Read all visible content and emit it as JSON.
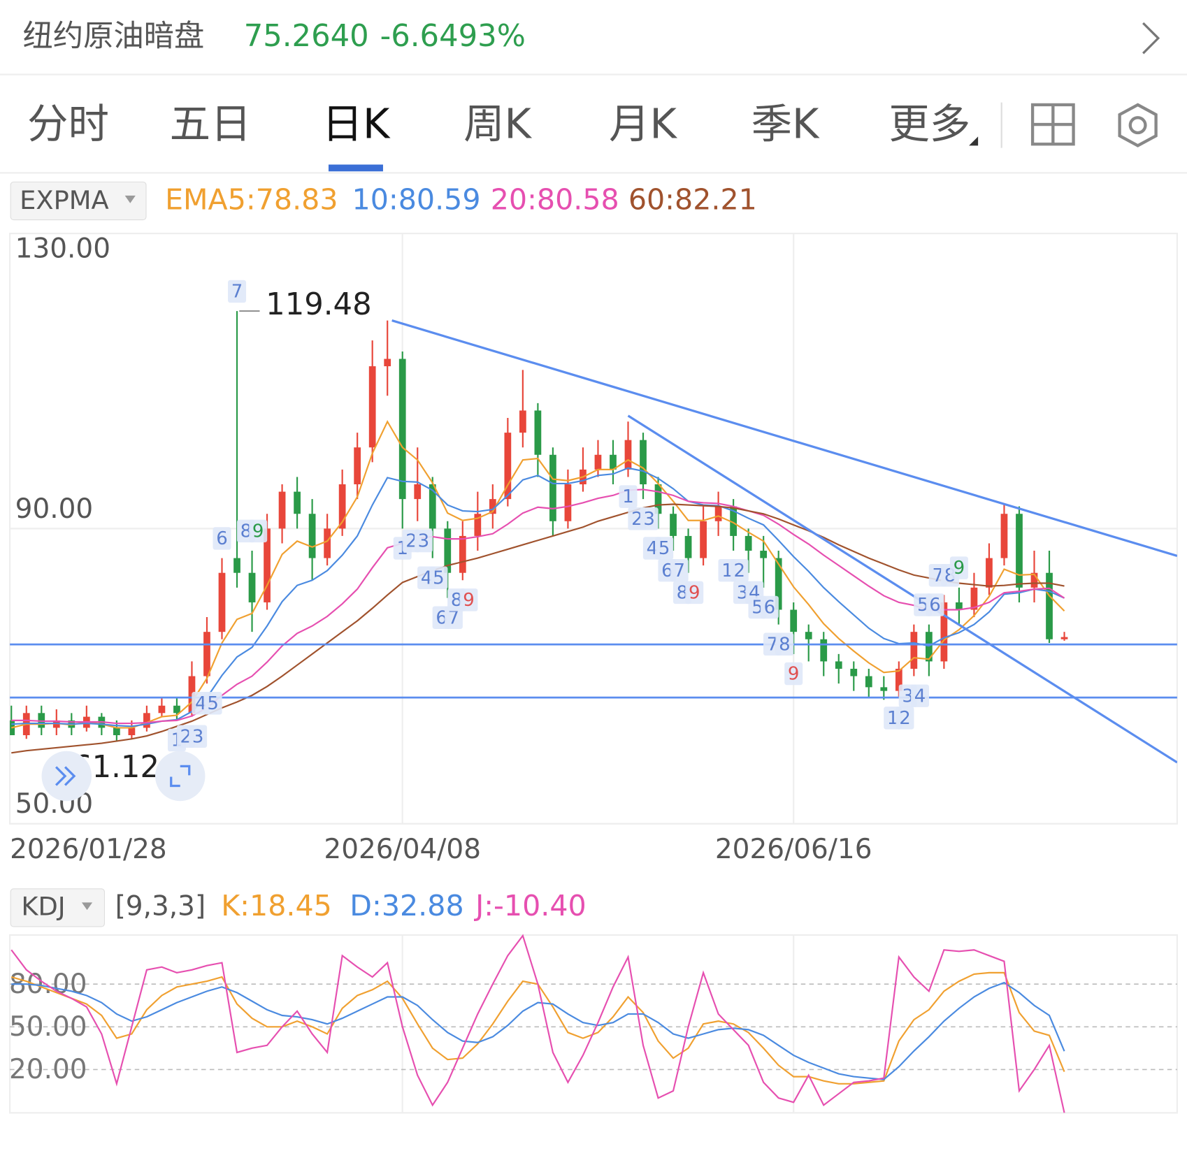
{
  "header": {
    "title": "纽约原油暗盘",
    "price": "75.2640",
    "change": "-6.6493%"
  },
  "tabs": [
    "分时",
    "五日",
    "日K",
    "周K",
    "月K",
    "季K",
    "更多"
  ],
  "active_tab": 2,
  "chart_data": [
    {
      "type": "candlestick",
      "indicator": "EXPMA",
      "categories": [
        "2026/01/28",
        null,
        null,
        null,
        null,
        null,
        null,
        null,
        null,
        null,
        null,
        null,
        null,
        null,
        null,
        null,
        null,
        null,
        null,
        null,
        null,
        null,
        null,
        null,
        null,
        null,
        "2026/04/08",
        null,
        null,
        null,
        null,
        null,
        null,
        null,
        null,
        null,
        null,
        null,
        null,
        null,
        null,
        null,
        null,
        null,
        null,
        null,
        null,
        null,
        null,
        null,
        null,
        null,
        "2026/06/16",
        null,
        null,
        null,
        null,
        null,
        null,
        null,
        null,
        null,
        null,
        null,
        null,
        null,
        null,
        null,
        null,
        null,
        null
      ],
      "xlim": [
        0,
        77.5
      ],
      "ylim": [
        50,
        130
      ],
      "yticks": [
        {
          "value": 50,
          "label": "50.00"
        },
        {
          "value": 90,
          "label": "90.00"
        },
        {
          "value": 130,
          "label": "130.00"
        }
      ],
      "grid": true,
      "up_color": "#e8463a",
      "down_color": "#2a9a48",
      "open": [
        64,
        62,
        65,
        63,
        64,
        63,
        64.5,
        63,
        62,
        63,
        65,
        66,
        65,
        70,
        76,
        86,
        84,
        80,
        90,
        95,
        92,
        86,
        90,
        96,
        101,
        112,
        113,
        94,
        96,
        90,
        84,
        89,
        92,
        94,
        103,
        106,
        100,
        91,
        96,
        98,
        100,
        98,
        102,
        96,
        92,
        89,
        86,
        91,
        93,
        89,
        87,
        86,
        79,
        76,
        75,
        72,
        71,
        70,
        68.5,
        68,
        71,
        76,
        72,
        80,
        79,
        82,
        86,
        92,
        82,
        84,
        75
      ],
      "high": [
        66,
        66,
        66,
        65.5,
        65,
        66,
        65,
        64,
        64,
        66,
        67,
        67,
        72,
        78,
        86,
        119.48,
        87,
        92,
        96,
        97,
        94,
        92,
        98,
        103,
        115.5,
        118.2,
        114,
        101,
        97,
        91,
        91,
        95,
        96,
        105,
        111.5,
        107,
        101,
        98,
        101,
        102,
        102,
        104.5,
        103,
        97,
        93,
        90,
        93,
        95,
        94,
        90,
        89,
        87,
        80,
        77,
        76,
        73,
        72,
        71,
        70,
        72,
        77,
        77,
        81,
        82,
        84,
        88,
        93.3,
        93,
        87,
        87,
        76
      ],
      "low": [
        62,
        61.5,
        62,
        62,
        62,
        62.5,
        62,
        61.12,
        61.5,
        62.5,
        64.5,
        64,
        64.5,
        69,
        75,
        82,
        76,
        79,
        88,
        90,
        83,
        85,
        89,
        94,
        99,
        108,
        90,
        91,
        86,
        80.6,
        83,
        87,
        90,
        93,
        101,
        97,
        89,
        90,
        95,
        97,
        96,
        97,
        94,
        90,
        87,
        84,
        85,
        89,
        87,
        84,
        82,
        77,
        73,
        72,
        70,
        69,
        68,
        67,
        66.8,
        67,
        70,
        70,
        71,
        77,
        78,
        81,
        85,
        80,
        80,
        74.5,
        74.8
      ],
      "close": [
        62,
        65,
        63,
        64,
        63,
        64.5,
        63,
        62,
        63,
        65,
        66,
        65,
        70,
        76,
        84,
        84,
        80,
        90,
        95,
        92,
        86,
        90,
        96,
        101,
        112,
        113,
        94,
        96,
        90,
        84,
        89,
        92,
        94,
        103,
        106,
        100,
        91,
        96,
        98,
        100,
        98,
        102,
        96,
        92,
        89,
        86,
        91,
        93,
        89,
        87,
        86,
        79,
        76,
        75,
        72,
        71,
        70,
        68.5,
        68,
        71,
        76,
        72,
        80,
        79,
        82,
        86,
        92,
        82,
        84,
        75,
        75.3
      ],
      "series": [
        {
          "name": "EMA5:78.83",
          "color": "#f0a030",
          "values": [
            63,
            63.5,
            63.5,
            63.6,
            63.4,
            63.8,
            63.5,
            63,
            63,
            63.7,
            64.5,
            64.7,
            66.5,
            69.7,
            74.5,
            77.7,
            78.5,
            82.3,
            86.5,
            88.3,
            87.5,
            88.3,
            90.9,
            94.3,
            100.2,
            104.5,
            101,
            99.3,
            96.2,
            92.1,
            91.1,
            91.4,
            92.3,
            95.9,
            99.3,
            99.5,
            96.7,
            96.5,
            97,
            98,
            98,
            99.3,
            98.2,
            96.1,
            93.7,
            91.1,
            91.1,
            91.7,
            90.8,
            89.5,
            88.3,
            85.2,
            82.1,
            79.7,
            77.1,
            75.1,
            73.4,
            71.8,
            70.5,
            70.7,
            72.5,
            72.3,
            74.9,
            76.3,
            78.2,
            80.8,
            84.5,
            83.7,
            83.8,
            80.9,
            78.83
          ]
        },
        {
          "name": "10:80.59",
          "color": "#4a8ae0",
          "values": [
            63.5,
            63.6,
            63.6,
            63.6,
            63.5,
            63.6,
            63.5,
            63.3,
            63.2,
            63.5,
            63.9,
            64.1,
            65.2,
            67.1,
            70.1,
            72.6,
            73.9,
            76.8,
            80.1,
            82.3,
            83,
            84.3,
            86.4,
            89,
            93.2,
            96.9,
            96.4,
            96.3,
            95.2,
            93.2,
            92.4,
            92.3,
            92.6,
            94.5,
            96.6,
            97.2,
            96.1,
            96.1,
            96.5,
            97.2,
            97.4,
            98.2,
            97.8,
            96.8,
            95.4,
            93.7,
            93.2,
            93.1,
            92.4,
            91.4,
            90.5,
            88.4,
            86.2,
            84.2,
            82,
            80.1,
            78.3,
            76.5,
            75.1,
            74.4,
            74.5,
            74.1,
            75.2,
            75.9,
            77,
            78.7,
            81.1,
            81.3,
            81.8,
            81.5,
            80.59
          ]
        },
        {
          "name": "20:80.58",
          "color": "#e64fb0",
          "values": [
            64,
            64,
            63.9,
            63.9,
            63.8,
            63.8,
            63.8,
            63.6,
            63.6,
            63.7,
            63.9,
            64,
            64.6,
            65.7,
            67.4,
            68.9,
            70,
            71.9,
            74.1,
            75.8,
            76.8,
            78.1,
            79.8,
            81.8,
            84.7,
            87.4,
            88,
            88.7,
            88.9,
            88.6,
            88.6,
            88.9,
            89.3,
            90.6,
            92.1,
            92.9,
            92.7,
            93,
            93.5,
            94.1,
            94.5,
            95.2,
            95.3,
            95,
            94.5,
            93.7,
            93.5,
            93.4,
            93,
            92.4,
            91.8,
            90.6,
            89.2,
            87.9,
            86.4,
            85,
            83.6,
            82.2,
            80.9,
            80,
            79.6,
            78.9,
            79,
            79,
            79.3,
            80,
            81.3,
            81.5,
            81.8,
            81.9,
            80.58
          ]
        },
        {
          "name": "60:82.21",
          "color": "#a0522d",
          "values": [
            59.6,
            59.9,
            60.1,
            60.3,
            60.5,
            60.7,
            60.9,
            61.2,
            61.5,
            61.9,
            62.5,
            63.2,
            63.9,
            64.8,
            65.7,
            66.5,
            67.4,
            68.6,
            70,
            71.5,
            73,
            74.5,
            76,
            77.5,
            79.2,
            81,
            82.7,
            83.5,
            84.3,
            85,
            85.5,
            86,
            86.6,
            87.2,
            87.8,
            88.4,
            89,
            89.6,
            90.2,
            91,
            91.6,
            92.2,
            92.8,
            93.2,
            93.3,
            93.2,
            93.1,
            93,
            92.8,
            92.4,
            92,
            91.3,
            90.5,
            89.7,
            88.8,
            87.8,
            86.9,
            86,
            85.2,
            84.4,
            83.7,
            83.3,
            82.9,
            82.6,
            82.4,
            82.2,
            82.3,
            82.5,
            82.6,
            82.6,
            82.21
          ]
        }
      ],
      "line_color": "#5b8def",
      "hlines": [
        74.3,
        67.1
      ],
      "trendlines": [
        {
          "x": [
            25.3,
            77.5
          ],
          "y": [
            118.2,
            86.3
          ]
        },
        {
          "x": [
            41,
            77.5
          ],
          "y": [
            105.3,
            58.3
          ]
        }
      ],
      "marker_color": "#5b7fd0",
      "markers": [
        {
          "label": "1",
          "index": 11,
          "side": "below"
        },
        {
          "label": "2",
          "index": 12,
          "side": "below"
        },
        {
          "label": "3",
          "index": 12,
          "side": "below"
        },
        {
          "label": "4",
          "index": 13,
          "side": "below"
        },
        {
          "label": "5",
          "index": 13,
          "side": "below"
        },
        {
          "label": "6",
          "index": 14,
          "side": "above"
        },
        {
          "label": "7",
          "index": 15,
          "side": "above"
        },
        {
          "label": "8",
          "index": 16,
          "side": "above"
        },
        {
          "label": "9",
          "index": 16,
          "side": "above",
          "color": "#2a9a48"
        },
        {
          "label": "1",
          "index": 26,
          "side": "below"
        },
        {
          "label": "2",
          "index": 27,
          "side": "below"
        },
        {
          "label": "3",
          "index": 27,
          "side": "below"
        },
        {
          "label": "4",
          "index": 28,
          "side": "below"
        },
        {
          "label": "5",
          "index": 28,
          "side": "below"
        },
        {
          "label": "6",
          "index": 29,
          "side": "below"
        },
        {
          "label": "7",
          "index": 29,
          "side": "below"
        },
        {
          "label": "8",
          "index": 30,
          "side": "below"
        },
        {
          "label": "9",
          "index": 30,
          "side": "below",
          "color": "#e05050"
        },
        {
          "label": "1",
          "index": 41,
          "side": "below"
        },
        {
          "label": "2",
          "index": 42,
          "side": "below"
        },
        {
          "label": "3",
          "index": 42,
          "side": "below"
        },
        {
          "label": "4",
          "index": 43,
          "side": "below"
        },
        {
          "label": "5",
          "index": 43,
          "side": "below"
        },
        {
          "label": "6",
          "index": 44,
          "side": "below"
        },
        {
          "label": "7",
          "index": 44,
          "side": "below"
        },
        {
          "label": "8",
          "index": 45,
          "side": "below"
        },
        {
          "label": "9",
          "index": 45,
          "side": "below",
          "color": "#e05050"
        },
        {
          "label": "1",
          "index": 48,
          "side": "below"
        },
        {
          "label": "2",
          "index": 48,
          "side": "below"
        },
        {
          "label": "3",
          "index": 49,
          "side": "below"
        },
        {
          "label": "4",
          "index": 49,
          "side": "below"
        },
        {
          "label": "5",
          "index": 50,
          "side": "below"
        },
        {
          "label": "6",
          "index": 50,
          "side": "below"
        },
        {
          "label": "7",
          "index": 51,
          "side": "below"
        },
        {
          "label": "8",
          "index": 51,
          "side": "below"
        },
        {
          "label": "9",
          "index": 52,
          "side": "below",
          "color": "#e05050"
        },
        {
          "label": "1",
          "index": 59,
          "side": "below"
        },
        {
          "label": "2",
          "index": 59,
          "side": "below"
        },
        {
          "label": "3",
          "index": 60,
          "side": "below"
        },
        {
          "label": "4",
          "index": 60,
          "side": "below"
        },
        {
          "label": "5",
          "index": 61,
          "side": "above"
        },
        {
          "label": "6",
          "index": 61,
          "side": "above"
        },
        {
          "label": "7",
          "index": 62,
          "side": "above"
        },
        {
          "label": "8",
          "index": 62,
          "side": "above"
        },
        {
          "label": "9",
          "index": 63,
          "side": "above",
          "color": "#2a9a48"
        }
      ]
    },
    {
      "type": "line",
      "indicator": "KDJ",
      "params": "[9,3,3]",
      "xlim": [
        0,
        77.5
      ],
      "ylim": [
        -10.4,
        114.5
      ],
      "yticks": [
        {
          "value": 20,
          "label": "20.00"
        },
        {
          "value": 50,
          "label": "50.00"
        },
        {
          "value": 80,
          "label": "80.00"
        }
      ],
      "grid": true,
      "series": [
        {
          "name": "K:18.45",
          "color": "#f0a030",
          "values": [
            85,
            82,
            78,
            74,
            70,
            66,
            58,
            42,
            45,
            62,
            72,
            78,
            80,
            82,
            85,
            66,
            56,
            50,
            50,
            54,
            50,
            45,
            63,
            72,
            76,
            82,
            70,
            52,
            35,
            27,
            28,
            38,
            52,
            68,
            82,
            80,
            64,
            46,
            42,
            46,
            57,
            71,
            60,
            40,
            28,
            35,
            52,
            54,
            52,
            46,
            35,
            23,
            15,
            15,
            12,
            10,
            10,
            11,
            12,
            40,
            55,
            62,
            75,
            82,
            87,
            88,
            88,
            60,
            47,
            44,
            18.45
          ]
        },
        {
          "name": "D:32.88",
          "color": "#4a8ae0",
          "values": [
            80,
            80,
            79,
            77,
            75,
            72,
            67,
            59,
            54,
            57,
            62,
            67,
            71,
            75,
            78,
            74,
            68,
            62,
            58,
            57,
            55,
            52,
            56,
            61,
            66,
            71,
            71,
            65,
            55,
            46,
            40,
            39,
            43,
            51,
            61,
            67,
            66,
            59,
            53,
            51,
            53,
            59,
            59,
            53,
            45,
            42,
            45,
            48,
            49,
            48,
            44,
            37,
            30,
            25,
            21,
            17,
            15,
            14,
            13,
            22,
            33,
            43,
            54,
            63,
            71,
            77,
            81,
            74,
            65,
            58,
            32.88
          ]
        },
        {
          "name": "J:-10.40",
          "color": "#e64fb0",
          "values": [
            104,
            90,
            82,
            75,
            70,
            64,
            45,
            10,
            50,
            90,
            92,
            88,
            90,
            93,
            95,
            32,
            35,
            37,
            50,
            61,
            45,
            32,
            100,
            92,
            85,
            95,
            50,
            16,
            -5,
            11,
            35,
            59,
            80,
            100,
            114,
            80,
            32,
            11,
            30,
            53,
            78,
            99,
            37,
            0,
            5,
            50,
            88,
            59,
            48,
            37,
            11,
            0,
            -3,
            16,
            -5,
            3,
            11,
            12,
            14,
            99,
            85,
            75,
            104,
            103,
            104,
            100,
            96,
            5,
            20,
            37,
            -10.4
          ]
        }
      ]
    }
  ]
}
